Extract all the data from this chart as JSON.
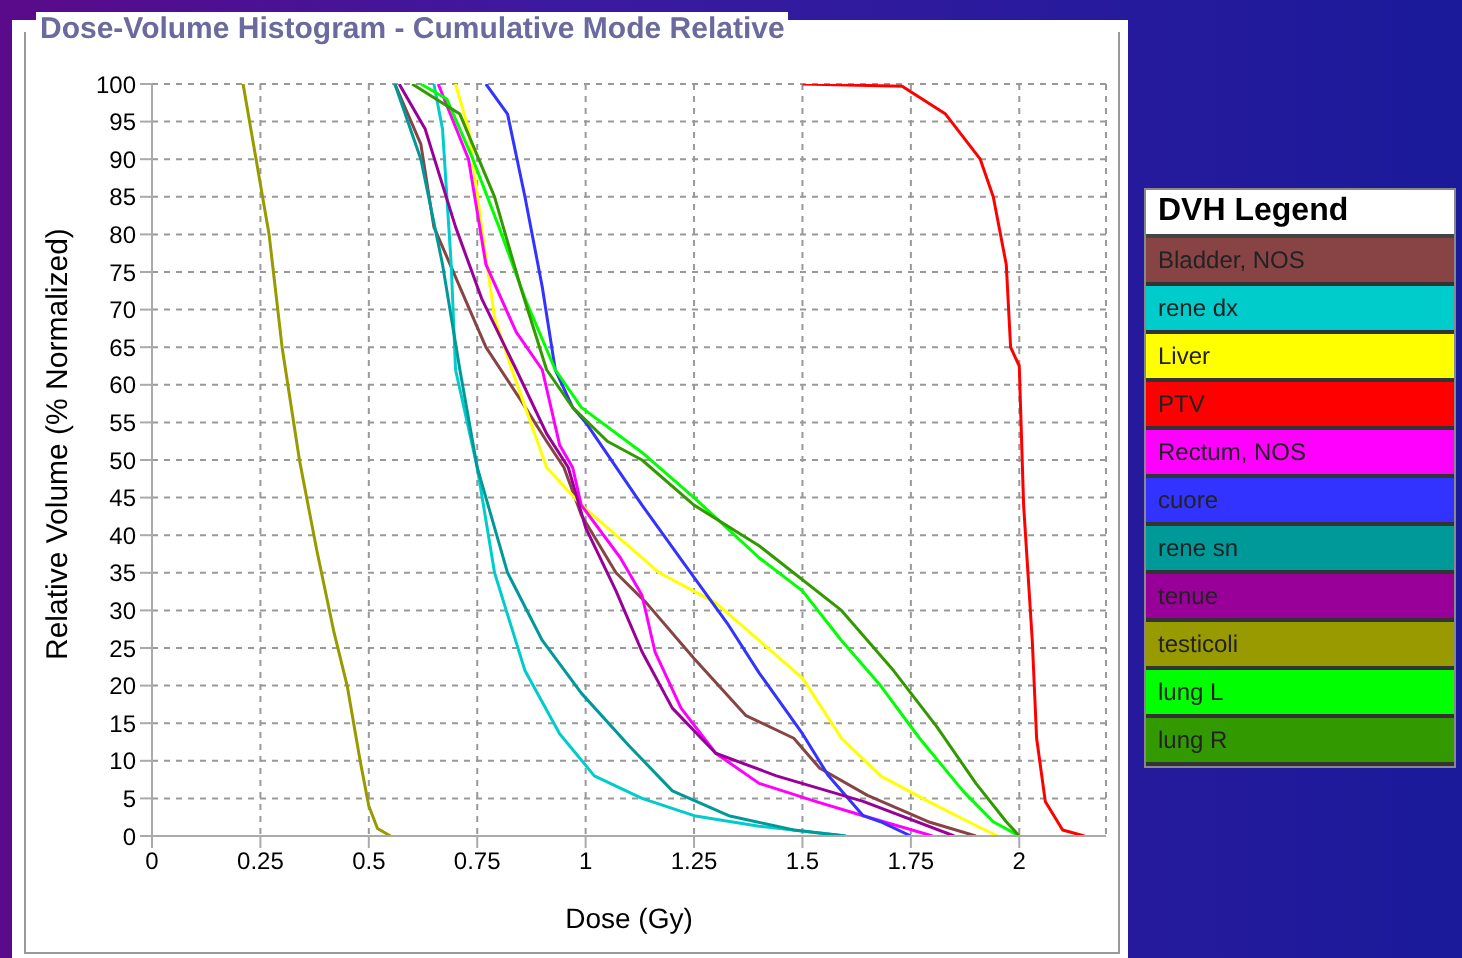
{
  "chart_data": {
    "type": "line",
    "title": "Dose-Volume Histogram - Cumulative Mode Relative",
    "xlabel": "Dose (Gy)",
    "ylabel": "Relative Volume (% Normalized)",
    "legend_title": "DVH Legend",
    "legend": "right",
    "grid": true,
    "marker": "none",
    "line_style": "solid",
    "xlim": [
      0,
      2.2
    ],
    "xticks": [
      0,
      0.25,
      0.5,
      0.75,
      1,
      1.25,
      1.5,
      1.75,
      2
    ],
    "ylim": [
      0,
      100
    ],
    "yticks": [
      0,
      5,
      10,
      15,
      20,
      25,
      30,
      35,
      40,
      45,
      50,
      55,
      60,
      65,
      70,
      75,
      80,
      85,
      90,
      95,
      100
    ],
    "series": [
      {
        "name": "Bladder, NOS",
        "color": "#884444",
        "x": [
          0.56,
          0.62,
          0.65,
          0.71,
          0.77,
          0.85,
          0.91,
          0.95,
          0.99,
          1.07,
          1.14,
          1.25,
          1.37,
          1.48,
          1.54,
          1.65,
          1.79,
          1.9
        ],
        "values": [
          100,
          92,
          81,
          73,
          65,
          58,
          52.5,
          49,
          42.7,
          35,
          31,
          23.6,
          16,
          13,
          9,
          5.4,
          1.9,
          0
        ]
      },
      {
        "name": "rene dx",
        "color": "#00cccc",
        "x": [
          0.65,
          0.67,
          0.69,
          0.7,
          0.75,
          0.79,
          0.86,
          0.94,
          1.02,
          1.13,
          1.25,
          1.4,
          1.6
        ],
        "values": [
          100,
          94,
          76,
          62,
          49,
          35,
          22,
          13.6,
          8,
          5,
          2.7,
          1.3,
          0
        ]
      },
      {
        "name": "Liver",
        "color": "#ffff00",
        "x": [
          0.7,
          0.73,
          0.76,
          0.79,
          0.83,
          0.91,
          0.99,
          1.07,
          1.17,
          1.3,
          1.4,
          1.5,
          1.59,
          1.68,
          1.79,
          1.9,
          1.95
        ],
        "values": [
          100,
          94,
          81,
          69,
          62,
          49,
          44,
          40,
          35,
          31,
          26,
          21,
          13,
          8,
          4.6,
          1.4,
          0
        ]
      },
      {
        "name": "PTV",
        "color": "#ff0000",
        "x": [
          1.5,
          1.73,
          1.83,
          1.91,
          1.94,
          1.97,
          1.98,
          2.0,
          2.01,
          2.03,
          2.04,
          2.06,
          2.1,
          2.15
        ],
        "values": [
          100,
          99.7,
          96,
          90,
          85,
          76,
          65,
          62.5,
          44,
          26,
          13,
          4.6,
          0.8,
          0
        ]
      },
      {
        "name": "Rectum, NOS",
        "color": "#ff00ff",
        "x": [
          0.66,
          0.73,
          0.77,
          0.84,
          0.9,
          0.94,
          0.97,
          0.99,
          1.08,
          1.13,
          1.16,
          1.22,
          1.3,
          1.4,
          1.53,
          1.64,
          1.8
        ],
        "values": [
          100,
          90,
          76,
          67,
          62,
          52,
          49,
          44,
          37,
          32,
          24.5,
          17,
          11,
          7,
          4.6,
          2.7,
          0
        ]
      },
      {
        "name": "cuore",
        "color": "#3333ff",
        "x": [
          0.77,
          0.82,
          0.86,
          0.9,
          0.93,
          0.97,
          1.0,
          1.13,
          1.23,
          1.33,
          1.4,
          1.5,
          1.56,
          1.64,
          1.68,
          1.75
        ],
        "values": [
          100,
          96,
          85,
          73,
          62,
          57,
          55,
          44,
          36,
          28,
          21.7,
          13.6,
          8,
          2.7,
          1.9,
          0
        ]
      },
      {
        "name": "rene sn",
        "color": "#009999",
        "x": [
          0.56,
          0.62,
          0.67,
          0.71,
          0.75,
          0.82,
          0.9,
          0.99,
          1.1,
          1.2,
          1.33,
          1.48,
          1.6
        ],
        "values": [
          100,
          90,
          76,
          62,
          49,
          35,
          26,
          19,
          12,
          6,
          2.7,
          0.8,
          0
        ]
      },
      {
        "name": "tenue",
        "color": "#990099",
        "x": [
          0.57,
          0.63,
          0.7,
          0.76,
          0.84,
          0.91,
          0.96,
          1.0,
          1.07,
          1.13,
          1.2,
          1.3,
          1.44,
          1.64,
          1.85
        ],
        "values": [
          100,
          94,
          81,
          71.5,
          62,
          53.5,
          49,
          41,
          32.6,
          24.5,
          17,
          11,
          8,
          4.6,
          0
        ]
      },
      {
        "name": "testicoli",
        "color": "#999900",
        "x": [
          0.21,
          0.24,
          0.27,
          0.3,
          0.34,
          0.38,
          0.42,
          0.45,
          0.48,
          0.5,
          0.52,
          0.55
        ],
        "values": [
          100,
          90,
          80,
          65,
          50,
          38,
          27,
          20,
          10,
          4,
          1,
          0
        ]
      },
      {
        "name": "lung L",
        "color": "#00ff00",
        "x": [
          0.62,
          0.68,
          0.74,
          0.8,
          0.86,
          0.93,
          0.99,
          1.13,
          1.25,
          1.4,
          1.5,
          1.59,
          1.68,
          1.77,
          1.87,
          1.94,
          2.0
        ],
        "values": [
          100,
          98,
          90,
          81,
          71.5,
          62,
          57,
          51,
          45,
          37,
          32.6,
          26,
          20,
          13,
          6,
          1.9,
          0
        ]
      },
      {
        "name": "lung R",
        "color": "#339900",
        "x": [
          0.6,
          0.71,
          0.79,
          0.85,
          0.91,
          0.97,
          1.05,
          1.13,
          1.25,
          1.4,
          1.59,
          1.71,
          1.81,
          1.9,
          1.97,
          2.0
        ],
        "values": [
          100,
          96,
          85,
          73,
          62,
          57,
          52.5,
          50,
          44,
          38.6,
          30,
          22,
          14.5,
          7,
          1.9,
          0
        ]
      }
    ]
  }
}
